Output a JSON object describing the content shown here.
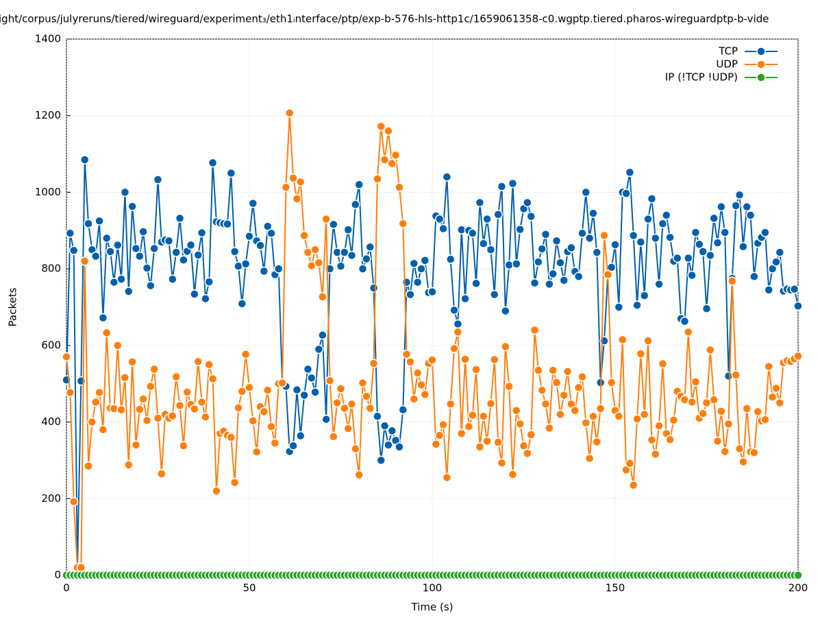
{
  "chart_data": {
    "type": "line",
    "title": "ight/corpus/julyreruns/tiered/wireguard/experiment₃/eth1ᵢnterface/ptp/exp-b-576-hls-http1c/1659061358-c0.wgptp.tiered.pharos-wireguardptp-b-vide",
    "x_label": "Time (s)",
    "y_label": "Packets",
    "xlim": [
      0,
      200
    ],
    "xticks": [
      0,
      50,
      100,
      150,
      200
    ],
    "ylim": [
      0,
      1400
    ],
    "yticks": [
      0,
      200,
      400,
      600,
      800,
      1000,
      1200,
      1400
    ],
    "grid": true,
    "legend": "top-right",
    "x": [
      0,
      1,
      2,
      3,
      4,
      5,
      6,
      7,
      8,
      9,
      10,
      11,
      12,
      13,
      14,
      15,
      16,
      17,
      18,
      19,
      20,
      21,
      22,
      23,
      24,
      25,
      26,
      27,
      28,
      29,
      30,
      31,
      32,
      33,
      34,
      35,
      36,
      37,
      38,
      39,
      40,
      41,
      42,
      43,
      44,
      45,
      46,
      47,
      48,
      49,
      50,
      51,
      52,
      53,
      54,
      55,
      56,
      57,
      58,
      59,
      60,
      61,
      62,
      63,
      64,
      65,
      66,
      67,
      68,
      69,
      70,
      71,
      72,
      73,
      74,
      75,
      76,
      77,
      78,
      79,
      80,
      81,
      82,
      83,
      84,
      85,
      86,
      87,
      88,
      89,
      90,
      91,
      92,
      93,
      94,
      95,
      96,
      97,
      98,
      99,
      100,
      101,
      102,
      103,
      104,
      105,
      106,
      107,
      108,
      109,
      110,
      111,
      112,
      113,
      114,
      115,
      116,
      117,
      118,
      119,
      120,
      121,
      122,
      123,
      124,
      125,
      126,
      127,
      128,
      129,
      130,
      131,
      132,
      133,
      134,
      135,
      136,
      137,
      138,
      139,
      140,
      141,
      142,
      143,
      144,
      145,
      146,
      147,
      148,
      149,
      150,
      151,
      152,
      153,
      154,
      155,
      156,
      157,
      158,
      159,
      160,
      161,
      162,
      163,
      164,
      165,
      166,
      167,
      168,
      169,
      170,
      171,
      172,
      173,
      174,
      175,
      176,
      177,
      178,
      179,
      180,
      181,
      182,
      183,
      184,
      185,
      186,
      187,
      188,
      189,
      190,
      191,
      192,
      193,
      194,
      195,
      196,
      197,
      198,
      199,
      200
    ],
    "series": [
      {
        "name": "TCP",
        "color": "#0060ad",
        "values": [
          510,
          893,
          848,
          20,
          507,
          1085,
          918,
          850,
          833,
          925,
          672,
          880,
          845,
          765,
          862,
          773,
          1000,
          741,
          963,
          853,
          833,
          897,
          802,
          756,
          853,
          1033,
          870,
          875,
          873,
          773,
          843,
          932,
          823,
          846,
          862,
          734,
          836,
          894,
          722,
          766,
          1077,
          923,
          920,
          918,
          917,
          1050,
          845,
          807,
          709,
          813,
          885,
          971,
          873,
          861,
          794,
          911,
          893,
          785,
          800,
          500,
          493,
          323,
          338,
          484,
          364,
          470,
          538,
          515,
          478,
          590,
          627,
          407,
          800,
          916,
          843,
          807,
          843,
          902,
          835,
          968,
          1020,
          800,
          826,
          857,
          750,
          415,
          300,
          390,
          340,
          377,
          352,
          335,
          432,
          765,
          733,
          814,
          765,
          800,
          822,
          738,
          740,
          938,
          930,
          905,
          1040,
          825,
          692,
          656,
          902,
          722,
          900,
          893,
          762,
          973,
          866,
          930,
          850,
          733,
          942,
          1015,
          690,
          810,
          1023,
          813,
          903,
          957,
          973,
          937,
          763,
          818,
          852,
          890,
          760,
          787,
          873,
          816,
          770,
          845,
          855,
          793,
          780,
          893,
          1000,
          880,
          945,
          843,
          503,
          612,
          785,
          804,
          863,
          700,
          1000,
          997,
          1052,
          887,
          705,
          870,
          730,
          930,
          983,
          880,
          760,
          918,
          940,
          882,
          820,
          828,
          670,
          663,
          828,
          783,
          895,
          864,
          845,
          696,
          835,
          932,
          868,
          962,
          895,
          520,
          775,
          965,
          993,
          858,
          962,
          940,
          780,
          867,
          882,
          895,
          745,
          800,
          818,
          843,
          742,
          747,
          745,
          747,
          703
        ]
      },
      {
        "name": "UDP",
        "color": "#ff7f0e",
        "values": [
          570,
          477,
          192,
          20,
          20,
          820,
          285,
          400,
          452,
          477,
          380,
          633,
          436,
          435,
          600,
          432,
          516,
          288,
          557,
          340,
          433,
          460,
          404,
          493,
          538,
          410,
          265,
          420,
          410,
          416,
          518,
          443,
          338,
          478,
          446,
          434,
          558,
          452,
          413,
          550,
          513,
          220,
          370,
          376,
          365,
          360,
          242,
          437,
          480,
          577,
          490,
          403,
          322,
          440,
          427,
          483,
          388,
          345,
          500,
          502,
          1013,
          1207,
          1037,
          983,
          1027,
          887,
          843,
          808,
          850,
          816,
          727,
          930,
          508,
          362,
          450,
          487,
          436,
          383,
          447,
          330,
          262,
          502,
          467,
          436,
          553,
          1035,
          1172,
          1085,
          1160,
          1075,
          1097,
          1013,
          918,
          577,
          557,
          460,
          528,
          497,
          472,
          553,
          562,
          342,
          365,
          393,
          255,
          447,
          592,
          635,
          370,
          564,
          388,
          418,
          537,
          335,
          415,
          350,
          448,
          563,
          347,
          293,
          597,
          493,
          263,
          430,
          395,
          338,
          318,
          367,
          640,
          535,
          483,
          447,
          384,
          535,
          503,
          420,
          470,
          532,
          447,
          430,
          490,
          518,
          398,
          305,
          415,
          348,
          435,
          887,
          785,
          503,
          430,
          415,
          615,
          275,
          292,
          235,
          408,
          578,
          420,
          612,
          353,
          316,
          390,
          552,
          370,
          354,
          405,
          480,
          467,
          458,
          635,
          452,
          505,
          410,
          422,
          450,
          588,
          458,
          350,
          428,
          323,
          395,
          768,
          523,
          330,
          296,
          435,
          322,
          320,
          427,
          403,
          406,
          545,
          465,
          488,
          450,
          555,
          560,
          558,
          565,
          572
        ]
      },
      {
        "name": "IP (!TCP  !UDP)",
        "color": "#2ca02c",
        "values": [
          0,
          0,
          0,
          0,
          0,
          0,
          0,
          0,
          0,
          0,
          0,
          0,
          0,
          0,
          0,
          0,
          0,
          0,
          0,
          0,
          0,
          0,
          0,
          0,
          0,
          0,
          0,
          0,
          0,
          0,
          0,
          0,
          0,
          0,
          0,
          0,
          0,
          0,
          0,
          0,
          0,
          0,
          0,
          0,
          0,
          0,
          0,
          0,
          0,
          0,
          0,
          0,
          0,
          0,
          0,
          0,
          0,
          0,
          0,
          0,
          0,
          0,
          0,
          0,
          0,
          0,
          0,
          0,
          0,
          0,
          0,
          0,
          0,
          0,
          0,
          0,
          0,
          0,
          0,
          0,
          0,
          0,
          0,
          0,
          0,
          0,
          0,
          0,
          0,
          0,
          0,
          0,
          0,
          0,
          0,
          0,
          0,
          0,
          0,
          0,
          0,
          0,
          0,
          0,
          0,
          0,
          0,
          0,
          0,
          0,
          0,
          0,
          0,
          0,
          0,
          0,
          0,
          0,
          0,
          0,
          0,
          0,
          0,
          0,
          0,
          0,
          0,
          0,
          0,
          0,
          0,
          0,
          0,
          0,
          0,
          0,
          0,
          0,
          0,
          0,
          0,
          0,
          0,
          0,
          0,
          0,
          0,
          0,
          0,
          0,
          0,
          0,
          0,
          0,
          0,
          0,
          0,
          0,
          0,
          0,
          0,
          0,
          0,
          0,
          0,
          0,
          0,
          0,
          0,
          0,
          0,
          0,
          0,
          0,
          0,
          0,
          0,
          0,
          0,
          0,
          0,
          0,
          0,
          0,
          0,
          0,
          0,
          0,
          0,
          0,
          0,
          0,
          0,
          0,
          0,
          0,
          0,
          0,
          0,
          0,
          0
        ]
      }
    ]
  }
}
